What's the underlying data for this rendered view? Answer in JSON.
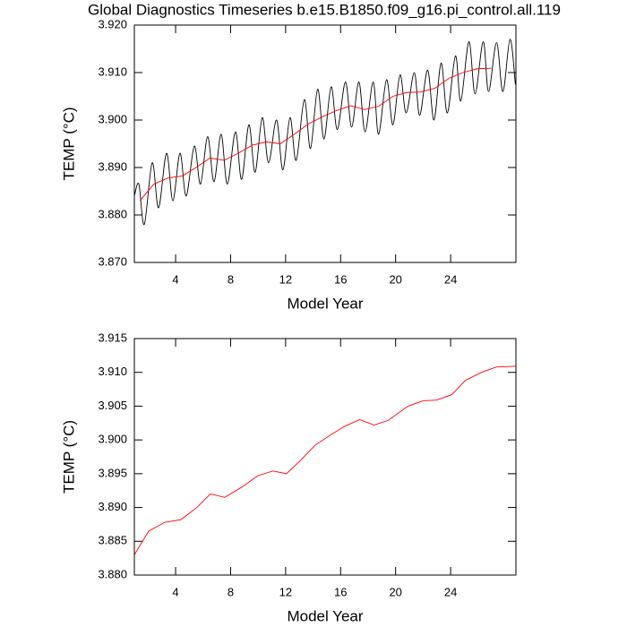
{
  "title": "Global Diagnostics Timeseries b.e15.B1850.f09_g16.pi_control.all.119",
  "chart_data": [
    {
      "type": "line",
      "x_label": "Model Year",
      "y_label": "TEMP (°C)",
      "xlim": [
        1,
        28.75
      ],
      "xticks": [
        4,
        8,
        12,
        16,
        20,
        24
      ],
      "ylim": [
        3.87,
        3.92
      ],
      "yticks": [
        {
          "value": 3.87,
          "label": "3.870"
        },
        {
          "value": 3.88,
          "label": "3.880"
        },
        {
          "value": 3.89,
          "label": "3.890"
        },
        {
          "value": 3.9,
          "label": "3.900"
        },
        {
          "value": 3.91,
          "label": "3.910"
        },
        {
          "value": 3.92,
          "label": "3.920"
        }
      ],
      "series": [
        {
          "color": "#000000",
          "smooth": true,
          "x": [
            1.0,
            1.33,
            1.72,
            2.3,
            2.76,
            3.34,
            3.8,
            4.32,
            4.77,
            5.36,
            5.81,
            6.33,
            6.79,
            7.31,
            7.76,
            8.35,
            8.8,
            9.33,
            9.78,
            10.3,
            10.76,
            11.34,
            11.8,
            12.32,
            12.77,
            13.36,
            13.81,
            14.33,
            14.79,
            15.31,
            15.76,
            16.35,
            16.8,
            17.33,
            17.78,
            18.37,
            18.76,
            19.34,
            19.8,
            20.32,
            20.77,
            21.36,
            21.75,
            22.33,
            22.79,
            23.31,
            23.76,
            24.35,
            24.74,
            25.33,
            25.78,
            26.37,
            26.76,
            27.34,
            27.8,
            28.32,
            28.71
          ],
          "values": [
            3.884,
            3.8865,
            3.878,
            3.891,
            3.8815,
            3.893,
            3.883,
            3.893,
            3.884,
            3.8945,
            3.8865,
            3.8965,
            3.887,
            3.897,
            3.8865,
            3.8975,
            3.8875,
            3.899,
            3.889,
            3.9005,
            3.891,
            3.9,
            3.8895,
            3.9005,
            3.8915,
            3.9043,
            3.894,
            3.9065,
            3.896,
            3.907,
            3.898,
            3.908,
            3.8985,
            3.908,
            3.8975,
            3.908,
            3.897,
            3.9085,
            3.899,
            3.9095,
            3.9015,
            3.91,
            3.901,
            3.9105,
            3.9,
            3.912,
            3.9015,
            3.9135,
            3.904,
            3.9165,
            3.9055,
            3.9165,
            3.906,
            3.9163,
            3.906,
            3.917,
            3.9075
          ]
        },
        {
          "color": "#ff0000",
          "smooth": false,
          "x": [
            1.4,
            2.42,
            3.44,
            4.47,
            5.49,
            6.51,
            7.53,
            8.55,
            9.58,
            10.6,
            11.62,
            12.64,
            13.66,
            14.69,
            15.71,
            16.73,
            17.75,
            18.77,
            19.8,
            20.82,
            21.84,
            22.86,
            23.88,
            24.91,
            25.93,
            26.95
          ],
          "values": [
            3.883,
            3.8865,
            3.8878,
            3.8882,
            3.89,
            3.892,
            3.8915,
            3.893,
            3.8947,
            3.8954,
            3.895,
            3.897,
            3.8992,
            3.9007,
            3.902,
            3.903,
            3.9022,
            3.9029,
            3.905,
            3.9058,
            3.9059,
            3.9067,
            3.9088,
            3.91,
            3.9108,
            3.9109
          ]
        }
      ]
    },
    {
      "type": "line",
      "x_label": "Model Year",
      "y_label": "TEMP (°C)",
      "xlim": [
        1,
        28.75
      ],
      "xticks": [
        4,
        8,
        12,
        16,
        20,
        24
      ],
      "ylim": [
        3.88,
        3.915
      ],
      "yticks": [
        {
          "value": 3.88,
          "label": "3.880"
        },
        {
          "value": 3.885,
          "label": "3.885"
        },
        {
          "value": 3.89,
          "label": "3.890"
        },
        {
          "value": 3.895,
          "label": "3.895"
        },
        {
          "value": 3.9,
          "label": "3.900"
        },
        {
          "value": 3.905,
          "label": "3.905"
        },
        {
          "value": 3.91,
          "label": "3.910"
        },
        {
          "value": 3.915,
          "label": "3.915"
        }
      ],
      "series": [
        {
          "color": "#ff0000",
          "smooth": false,
          "x": [
            1.0,
            2.04,
            3.21,
            4.38,
            5.55,
            6.53,
            7.57,
            8.8,
            9.98,
            11.08,
            12.06,
            13.1,
            14.14,
            15.24,
            16.28,
            17.39,
            18.43,
            19.47,
            20.9,
            22.01,
            22.98,
            24.09,
            25.07,
            26.24,
            27.34,
            28.71
          ],
          "values": [
            3.883,
            3.8865,
            3.8878,
            3.8882,
            3.89,
            3.892,
            3.8915,
            3.893,
            3.8947,
            3.8954,
            3.895,
            3.897,
            3.8992,
            3.9007,
            3.902,
            3.903,
            3.9022,
            3.9029,
            3.905,
            3.9058,
            3.9059,
            3.9067,
            3.9088,
            3.91,
            3.9108,
            3.9109
          ]
        }
      ]
    }
  ]
}
